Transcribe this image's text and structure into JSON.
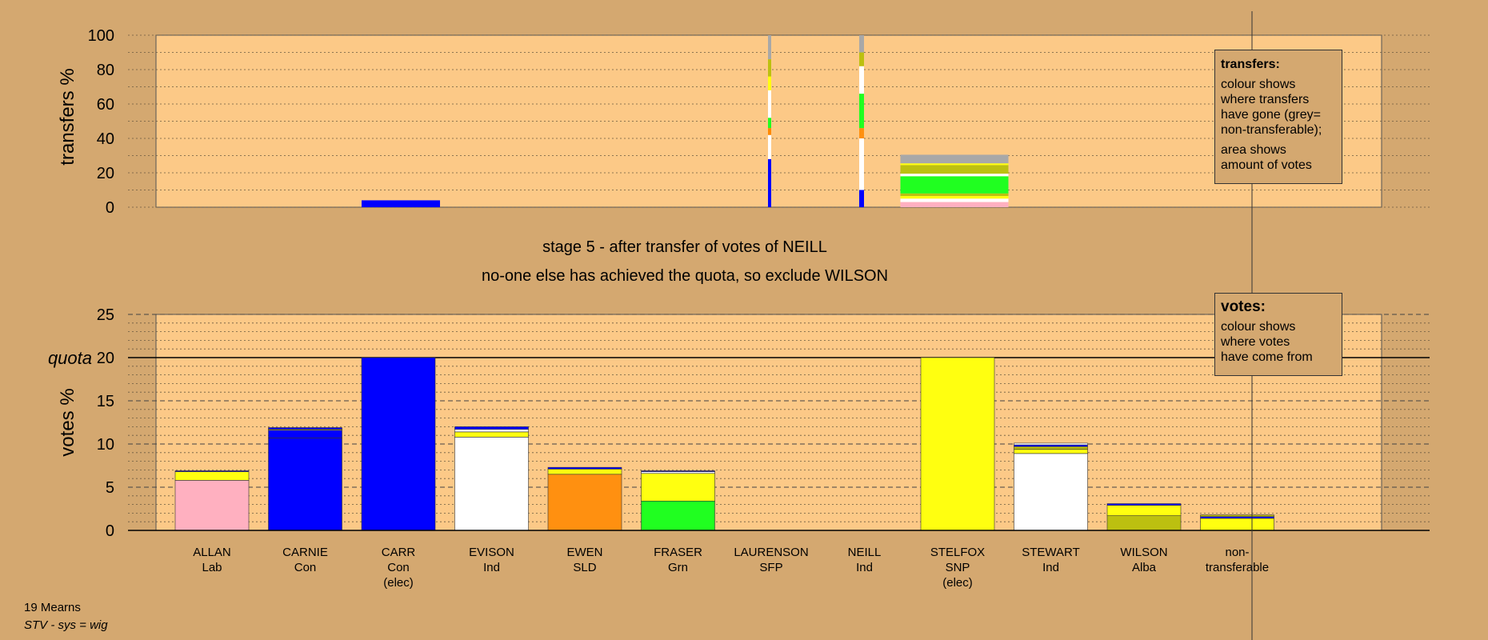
{
  "header": {
    "stage_line": "stage 5 - after transfer of votes of NEILL",
    "action_line": "no-one else has achieved the quota, so exclude WILSON"
  },
  "footer": {
    "ward": "19 Mearns",
    "system": "STV - sys = wig"
  },
  "colors": {
    "background": "#d4a870",
    "plot_bg": "#fcc987",
    "Lab": "#ffb0c0",
    "Con": "#0000ff",
    "Ind": "#ffffff",
    "SLD": "#ff9010",
    "Grn": "#20ff20",
    "SFP": "#ff8800",
    "SNP": "#ffff10",
    "Alba": "#bcc010",
    "non_transferable": "#a8a8a8"
  },
  "legends": {
    "transfers_title": "transfers:",
    "transfers_lines": [
      "colour shows",
      "where transfers",
      "have gone (grey=",
      "non-transferable);"
    ],
    "transfers_lines2": [
      "area shows",
      "amount of votes"
    ],
    "votes_title": "votes:",
    "votes_lines": [
      "colour shows",
      "where votes",
      "have come from"
    ]
  },
  "chart_data": [
    {
      "type": "bar",
      "name": "transfers",
      "ylabel": "transfers %",
      "ylim": [
        0,
        100
      ],
      "yticks": [
        "0",
        "20",
        "40",
        "60",
        "80",
        "100"
      ],
      "grid": true,
      "categories": [
        "ALLAN",
        "CARNIE",
        "CARR",
        "EVISON",
        "EWEN",
        "FRASER",
        "LAURENSON",
        "NEILL",
        "STELFOX",
        "STEWART",
        "WILSON",
        "non-transferable"
      ],
      "series": [
        {
          "candidate": "CARR",
          "values": [
            {
              "party": "Con",
              "value": 4
            }
          ]
        },
        {
          "candidate": "LAURENSON",
          "values": [
            {
              "party": "Con",
              "value": 28
            },
            {
              "party": "Ind",
              "value": 14
            },
            {
              "party": "SFP",
              "value": 4
            },
            {
              "party": "Grn",
              "value": 6
            },
            {
              "party": "Ind",
              "value": 16
            },
            {
              "party": "SNP",
              "value": 8
            },
            {
              "party": "Alba",
              "value": 10
            },
            {
              "party": "non_transferable",
              "value": 14
            }
          ]
        },
        {
          "candidate": "NEILL",
          "values": [
            {
              "party": "Con",
              "value": 10
            },
            {
              "party": "Ind",
              "value": 30
            },
            {
              "party": "SLD",
              "value": 6
            },
            {
              "party": "Grn",
              "value": 20
            },
            {
              "party": "Ind",
              "value": 16
            },
            {
              "party": "Alba",
              "value": 8
            },
            {
              "party": "non_transferable",
              "value": 10
            }
          ]
        },
        {
          "candidate": "EWEN..STEWART",
          "values": [
            {
              "party": "Lab",
              "value": 3
            },
            {
              "party": "Ind",
              "value": 2
            },
            {
              "party": "SNP",
              "value": 1.5
            },
            {
              "party": "Alba",
              "value": 1.5
            },
            {
              "party": "Grn",
              "value": 10
            },
            {
              "party": "Ind",
              "value": 1.5
            },
            {
              "party": "Alba",
              "value": 5
            },
            {
              "party": "SNP",
              "value": 1
            },
            {
              "party": "non_transferable",
              "value": 5
            }
          ]
        }
      ]
    },
    {
      "type": "bar",
      "name": "votes",
      "ylabel": "votes %",
      "ylim": [
        0,
        25
      ],
      "yticks": [
        "0",
        "5",
        "10",
        "15",
        "20",
        "25"
      ],
      "quota": 20,
      "quota_label": "quota",
      "grid": true,
      "candidates": [
        {
          "name": "ALLAN",
          "party": "Lab",
          "elec": "",
          "segments": [
            {
              "party": "Lab",
              "value": 5.8
            },
            {
              "party": "SNP",
              "value": 1.0
            },
            {
              "party": "Con",
              "value": 0.1
            }
          ]
        },
        {
          "name": "CARNIE",
          "party": "Con",
          "elec": "",
          "segments": [
            {
              "party": "Con",
              "value": 10.7
            },
            {
              "party": "Con",
              "value": 0.9
            },
            {
              "party": "SNP",
              "value": 0.1
            },
            {
              "party": "Con",
              "value": 0.2
            }
          ]
        },
        {
          "name": "CARR",
          "party": "Con",
          "elec": "(elec)",
          "segments": [
            {
              "party": "Con",
              "value": 20
            }
          ]
        },
        {
          "name": "EVISON",
          "party": "Ind",
          "elec": "",
          "segments": [
            {
              "party": "Ind",
              "value": 10.8
            },
            {
              "party": "SNP",
              "value": 0.6
            },
            {
              "party": "Ind",
              "value": 0.3
            },
            {
              "party": "Con",
              "value": 0.3
            }
          ]
        },
        {
          "name": "EWEN",
          "party": "SLD",
          "elec": "",
          "segments": [
            {
              "party": "SLD",
              "value": 6.5
            },
            {
              "party": "SNP",
              "value": 0.6
            },
            {
              "party": "Con",
              "value": 0.2
            }
          ]
        },
        {
          "name": "FRASER",
          "party": "Grn",
          "elec": "",
          "segments": [
            {
              "party": "Grn",
              "value": 3.4
            },
            {
              "party": "SNP",
              "value": 3.2
            },
            {
              "party": "Ind",
              "value": 0.2
            },
            {
              "party": "Con",
              "value": 0.1
            }
          ]
        },
        {
          "name": "LAURENSON",
          "party": "SFP",
          "elec": "",
          "segments": []
        },
        {
          "name": "NEILL",
          "party": "Ind",
          "elec": "",
          "segments": []
        },
        {
          "name": "STELFOX",
          "party": "SNP",
          "elec": "(elec)",
          "segments": [
            {
              "party": "SNP",
              "value": 20
            }
          ]
        },
        {
          "name": "STEWART",
          "party": "Ind",
          "elec": "",
          "segments": [
            {
              "party": "Ind",
              "value": 8.9
            },
            {
              "party": "SNP",
              "value": 0.5
            },
            {
              "party": "Alba",
              "value": 0.3
            },
            {
              "party": "Con",
              "value": 0.2
            },
            {
              "party": "Ind",
              "value": 0.2
            }
          ]
        },
        {
          "name": "WILSON",
          "party": "Alba",
          "elec": "",
          "segments": [
            {
              "party": "Alba",
              "value": 1.7
            },
            {
              "party": "SNP",
              "value": 1.2
            },
            {
              "party": "Con",
              "value": 0.2
            }
          ]
        },
        {
          "name": "non-",
          "party": "transferable",
          "elec": "",
          "segments": [
            {
              "party": "SNP",
              "value": 1.4
            },
            {
              "party": "Con",
              "value": 0.2
            },
            {
              "party": "Alba",
              "value": 0.2
            }
          ]
        }
      ]
    }
  ]
}
